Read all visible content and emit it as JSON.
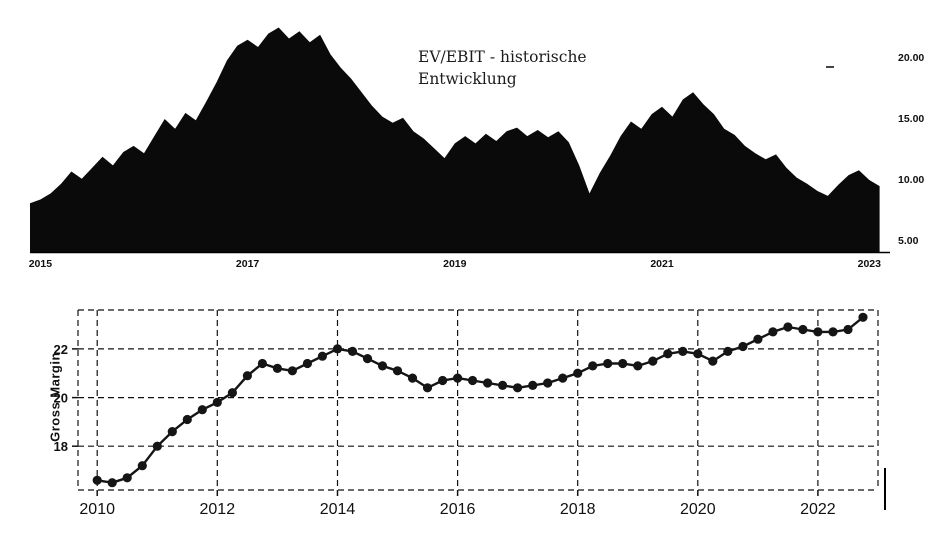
{
  "figure": {
    "background": "#ffffff",
    "ink": "#111111"
  },
  "top_chart": {
    "title_line1": "EV/EBIT - historische",
    "title_line2": "Entwicklung"
  },
  "chart_data": [
    {
      "type": "area",
      "title": "EV/EBIT - historische Entwicklung",
      "xlabel": "",
      "ylabel": "",
      "xlim": [
        2014.9,
        2023.2
      ],
      "ylim": [
        4,
        24
      ],
      "fill": "#0a0a0a",
      "grid": false,
      "legend": "none",
      "yticks": [
        {
          "value": 20,
          "label": "20.00"
        },
        {
          "value": 15,
          "label": "15.00"
        },
        {
          "value": 10,
          "label": "10.00"
        },
        {
          "value": 5,
          "label": "5.00"
        }
      ],
      "xticks": [
        {
          "value": 2015,
          "label": "2015"
        },
        {
          "value": 2017,
          "label": "2017"
        },
        {
          "value": 2019,
          "label": "2019"
        },
        {
          "value": 2021,
          "label": "2021"
        },
        {
          "value": 2023,
          "label": "2023"
        }
      ],
      "points": [
        [
          2014.9,
          8.0
        ],
        [
          2015.0,
          8.3
        ],
        [
          2015.1,
          8.8
        ],
        [
          2015.2,
          9.6
        ],
        [
          2015.3,
          10.6
        ],
        [
          2015.4,
          10.0
        ],
        [
          2015.5,
          10.9
        ],
        [
          2015.6,
          11.8
        ],
        [
          2015.7,
          11.1
        ],
        [
          2015.8,
          12.2
        ],
        [
          2015.9,
          12.7
        ],
        [
          2016.0,
          12.1
        ],
        [
          2016.1,
          13.5
        ],
        [
          2016.2,
          14.9
        ],
        [
          2016.3,
          14.1
        ],
        [
          2016.4,
          15.4
        ],
        [
          2016.5,
          14.8
        ],
        [
          2016.6,
          16.3
        ],
        [
          2016.7,
          17.9
        ],
        [
          2016.8,
          19.7
        ],
        [
          2016.9,
          20.9
        ],
        [
          2017.0,
          21.4
        ],
        [
          2017.1,
          20.8
        ],
        [
          2017.2,
          21.9
        ],
        [
          2017.3,
          22.4
        ],
        [
          2017.4,
          21.5
        ],
        [
          2017.5,
          22.1
        ],
        [
          2017.6,
          21.2
        ],
        [
          2017.7,
          21.8
        ],
        [
          2017.8,
          20.2
        ],
        [
          2017.9,
          19.1
        ],
        [
          2018.0,
          18.2
        ],
        [
          2018.1,
          17.1
        ],
        [
          2018.2,
          16.0
        ],
        [
          2018.3,
          15.1
        ],
        [
          2018.4,
          14.6
        ],
        [
          2018.5,
          15.0
        ],
        [
          2018.6,
          13.9
        ],
        [
          2018.7,
          13.3
        ],
        [
          2018.8,
          12.5
        ],
        [
          2018.9,
          11.7
        ],
        [
          2019.0,
          12.9
        ],
        [
          2019.1,
          13.5
        ],
        [
          2019.2,
          12.9
        ],
        [
          2019.3,
          13.7
        ],
        [
          2019.4,
          13.1
        ],
        [
          2019.5,
          13.9
        ],
        [
          2019.6,
          14.2
        ],
        [
          2019.7,
          13.5
        ],
        [
          2019.8,
          14.0
        ],
        [
          2019.9,
          13.4
        ],
        [
          2020.0,
          13.9
        ],
        [
          2020.1,
          13.0
        ],
        [
          2020.2,
          11.1
        ],
        [
          2020.3,
          8.8
        ],
        [
          2020.4,
          10.5
        ],
        [
          2020.5,
          11.9
        ],
        [
          2020.6,
          13.5
        ],
        [
          2020.7,
          14.7
        ],
        [
          2020.8,
          14.1
        ],
        [
          2020.9,
          15.3
        ],
        [
          2021.0,
          15.9
        ],
        [
          2021.1,
          15.1
        ],
        [
          2021.2,
          16.5
        ],
        [
          2021.3,
          17.1
        ],
        [
          2021.4,
          16.1
        ],
        [
          2021.5,
          15.3
        ],
        [
          2021.6,
          14.1
        ],
        [
          2021.7,
          13.6
        ],
        [
          2021.8,
          12.7
        ],
        [
          2021.9,
          12.1
        ],
        [
          2022.0,
          11.6
        ],
        [
          2022.1,
          12.0
        ],
        [
          2022.2,
          10.9
        ],
        [
          2022.3,
          10.1
        ],
        [
          2022.4,
          9.6
        ],
        [
          2022.5,
          9.0
        ],
        [
          2022.6,
          8.6
        ],
        [
          2022.7,
          9.5
        ],
        [
          2022.8,
          10.3
        ],
        [
          2022.9,
          10.7
        ],
        [
          2023.0,
          9.9
        ],
        [
          2023.1,
          9.4
        ]
      ]
    },
    {
      "type": "line",
      "title": "",
      "xlabel": "",
      "ylabel": "Gross Margin",
      "xlim": [
        2009.68,
        2023.0
      ],
      "ylim": [
        16.2,
        23.6
      ],
      "line_color": "#151515",
      "marker": "circle",
      "grid": "dashed",
      "legend": "none",
      "yticks": [
        {
          "value": 22,
          "label": "22"
        },
        {
          "value": 20,
          "label": "20"
        },
        {
          "value": 18,
          "label": "18"
        }
      ],
      "xticks": [
        {
          "value": 2010,
          "label": "2010"
        },
        {
          "value": 2012,
          "label": "2012"
        },
        {
          "value": 2014,
          "label": "2014"
        },
        {
          "value": 2016,
          "label": "2016"
        },
        {
          "value": 2018,
          "label": "2018"
        },
        {
          "value": 2020,
          "label": "2020"
        },
        {
          "value": 2022,
          "label": "2022"
        }
      ],
      "points": [
        [
          2010.0,
          16.6
        ],
        [
          2010.25,
          16.5
        ],
        [
          2010.5,
          16.7
        ],
        [
          2010.75,
          17.2
        ],
        [
          2011.0,
          18.0
        ],
        [
          2011.25,
          18.6
        ],
        [
          2011.5,
          19.1
        ],
        [
          2011.75,
          19.5
        ],
        [
          2012.0,
          19.8
        ],
        [
          2012.25,
          20.2
        ],
        [
          2012.5,
          20.9
        ],
        [
          2012.75,
          21.4
        ],
        [
          2013.0,
          21.2
        ],
        [
          2013.25,
          21.1
        ],
        [
          2013.5,
          21.4
        ],
        [
          2013.75,
          21.7
        ],
        [
          2014.0,
          22.0
        ],
        [
          2014.25,
          21.9
        ],
        [
          2014.5,
          21.6
        ],
        [
          2014.75,
          21.3
        ],
        [
          2015.0,
          21.1
        ],
        [
          2015.25,
          20.8
        ],
        [
          2015.5,
          20.4
        ],
        [
          2015.75,
          20.7
        ],
        [
          2016.0,
          20.8
        ],
        [
          2016.25,
          20.7
        ],
        [
          2016.5,
          20.6
        ],
        [
          2016.75,
          20.5
        ],
        [
          2017.0,
          20.4
        ],
        [
          2017.25,
          20.5
        ],
        [
          2017.5,
          20.6
        ],
        [
          2017.75,
          20.8
        ],
        [
          2018.0,
          21.0
        ],
        [
          2018.25,
          21.3
        ],
        [
          2018.5,
          21.4
        ],
        [
          2018.75,
          21.4
        ],
        [
          2019.0,
          21.3
        ],
        [
          2019.25,
          21.5
        ],
        [
          2019.5,
          21.8
        ],
        [
          2019.75,
          21.9
        ],
        [
          2020.0,
          21.8
        ],
        [
          2020.25,
          21.5
        ],
        [
          2020.5,
          21.9
        ],
        [
          2020.75,
          22.1
        ],
        [
          2021.0,
          22.4
        ],
        [
          2021.25,
          22.7
        ],
        [
          2021.5,
          22.9
        ],
        [
          2021.75,
          22.8
        ],
        [
          2022.0,
          22.7
        ],
        [
          2022.25,
          22.7
        ],
        [
          2022.5,
          22.8
        ],
        [
          2022.75,
          23.3
        ]
      ]
    }
  ]
}
